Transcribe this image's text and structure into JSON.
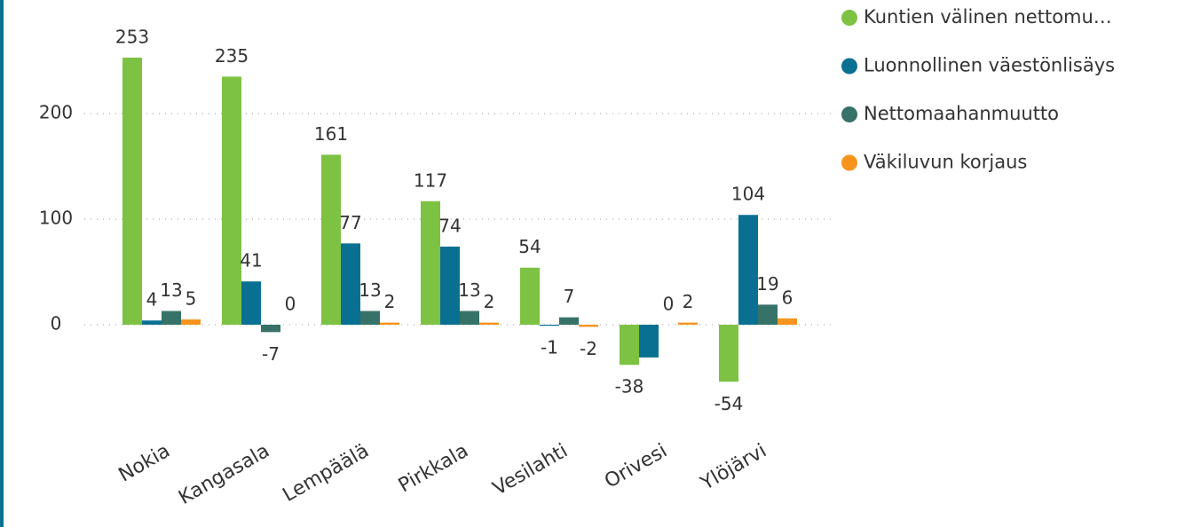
{
  "chart_data": {
    "type": "bar",
    "categories": [
      "Nokia",
      "Kangasala",
      "Lempäälä",
      "Pirkkala",
      "Vesilahti",
      "Orivesi",
      "Ylöjärvi"
    ],
    "series": [
      {
        "name": "Kuntien välinen nettomu…",
        "color": "#7dc242",
        "values": [
          253,
          235,
          161,
          117,
          54,
          -38,
          -54
        ]
      },
      {
        "name": "Luonnollinen väestönlisäys",
        "color": "#0a7092",
        "values": [
          4,
          41,
          77,
          74,
          -1,
          -31,
          104
        ],
        "value_labels": [
          "4",
          "41",
          "77",
          "74",
          "-1",
          null,
          "104"
        ]
      },
      {
        "name": "Nettomaahanmuutto",
        "color": "#367268",
        "values": [
          13,
          -7,
          13,
          13,
          7,
          0,
          19
        ]
      },
      {
        "name": "Väkiluvun korjaus",
        "color": "#f7941d",
        "values": [
          5,
          0,
          2,
          2,
          -2,
          2,
          6
        ]
      }
    ],
    "ylim": [
      -100,
      300
    ],
    "yticks": [
      0,
      100,
      200
    ],
    "grid": true,
    "legend": "top-right"
  }
}
